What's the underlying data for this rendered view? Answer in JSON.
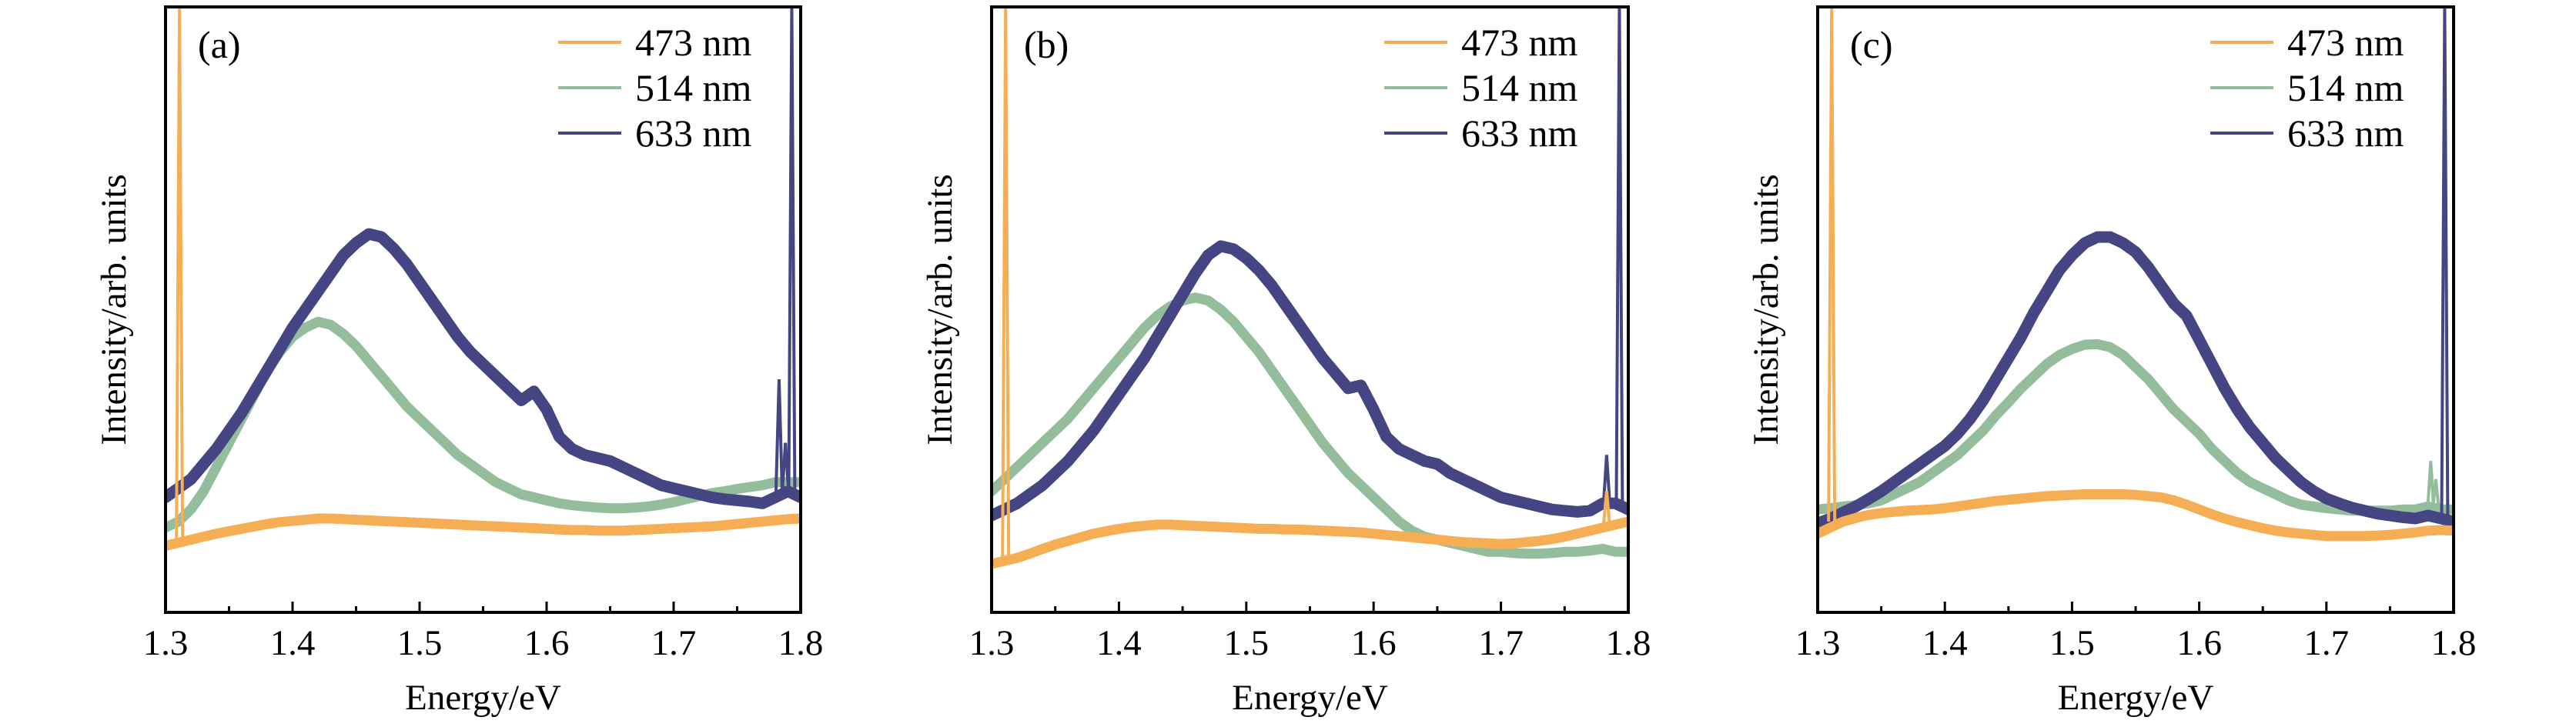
{
  "figure": {
    "colors": {
      "473 nm": "#F6AE55",
      "514 nm": "#94BD9C",
      "633 nm": "#444582",
      "axis": "#000000"
    }
  },
  "chart_data": [
    {
      "type": "line",
      "panel_label": "(a)",
      "title": "",
      "xlabel": "Energy/eV",
      "ylabel": "Intensity/arb. units",
      "xlim": [
        1.3,
        1.8
      ],
      "ylim": [
        0,
        1
      ],
      "y_units": "normalized arbitrary units (fraction of axis height)",
      "xticks": [
        "1.3",
        "1.4",
        "1.5",
        "1.6",
        "1.7",
        "1.8"
      ],
      "xtick_values": [
        1.3,
        1.4,
        1.5,
        1.6,
        1.7,
        1.8
      ],
      "minor_xtick_values": [
        1.35,
        1.45,
        1.55,
        1.65,
        1.75
      ],
      "yticks": [],
      "grid": false,
      "legend_position": "top-right",
      "legend": [
        "473 nm",
        "514 nm",
        "633 nm"
      ],
      "x": [
        1.3,
        1.31,
        1.32,
        1.33,
        1.34,
        1.35,
        1.36,
        1.37,
        1.38,
        1.39,
        1.4,
        1.41,
        1.42,
        1.43,
        1.44,
        1.45,
        1.46,
        1.47,
        1.48,
        1.49,
        1.5,
        1.51,
        1.52,
        1.53,
        1.54,
        1.55,
        1.56,
        1.57,
        1.58,
        1.59,
        1.6,
        1.61,
        1.62,
        1.63,
        1.64,
        1.65,
        1.66,
        1.67,
        1.68,
        1.69,
        1.7,
        1.71,
        1.72,
        1.73,
        1.74,
        1.75,
        1.76,
        1.77,
        1.78,
        1.79,
        1.8
      ],
      "series": [
        {
          "name": "473 nm",
          "values": [
            0.11,
            0.115,
            0.12,
            0.125,
            0.13,
            0.134,
            0.138,
            0.142,
            0.146,
            0.149,
            0.151,
            0.153,
            0.155,
            0.155,
            0.154,
            0.153,
            0.152,
            0.151,
            0.15,
            0.149,
            0.148,
            0.147,
            0.146,
            0.145,
            0.144,
            0.143,
            0.142,
            0.141,
            0.14,
            0.139,
            0.138,
            0.137,
            0.136,
            0.136,
            0.135,
            0.135,
            0.135,
            0.136,
            0.137,
            0.138,
            0.139,
            0.14,
            0.141,
            0.142,
            0.144,
            0.146,
            0.148,
            0.15,
            0.152,
            0.154,
            0.155
          ],
          "spikes": [
            {
              "x": 1.311,
              "y": 1.0
            }
          ]
        },
        {
          "name": "514 nm",
          "values": [
            0.14,
            0.15,
            0.17,
            0.2,
            0.24,
            0.28,
            0.32,
            0.36,
            0.4,
            0.43,
            0.455,
            0.47,
            0.48,
            0.475,
            0.46,
            0.44,
            0.415,
            0.39,
            0.365,
            0.34,
            0.32,
            0.3,
            0.28,
            0.26,
            0.245,
            0.23,
            0.215,
            0.205,
            0.195,
            0.19,
            0.185,
            0.18,
            0.177,
            0.175,
            0.173,
            0.172,
            0.172,
            0.173,
            0.175,
            0.178,
            0.182,
            0.187,
            0.192,
            0.197,
            0.2,
            0.204,
            0.207,
            0.21,
            0.215,
            0.215,
            0.215
          ],
          "spikes": []
        },
        {
          "name": "633 nm",
          "values": [
            0.19,
            0.205,
            0.22,
            0.245,
            0.27,
            0.3,
            0.33,
            0.365,
            0.4,
            0.435,
            0.47,
            0.5,
            0.53,
            0.56,
            0.59,
            0.61,
            0.625,
            0.62,
            0.6,
            0.575,
            0.545,
            0.515,
            0.485,
            0.455,
            0.43,
            0.41,
            0.39,
            0.37,
            0.35,
            0.365,
            0.335,
            0.29,
            0.27,
            0.26,
            0.255,
            0.25,
            0.24,
            0.23,
            0.22,
            0.21,
            0.205,
            0.2,
            0.195,
            0.19,
            0.187,
            0.185,
            0.183,
            0.18,
            0.19,
            0.2,
            0.19
          ],
          "spikes": [
            {
              "x": 1.783,
              "y": 0.385
            },
            {
              "x": 1.788,
              "y": 0.28
            },
            {
              "x": 1.793,
              "y": 1.0
            }
          ]
        }
      ]
    },
    {
      "type": "line",
      "panel_label": "(b)",
      "title": "",
      "xlabel": "Energy/eV",
      "ylabel": "Intensity/arb. units",
      "xlim": [
        1.3,
        1.8
      ],
      "ylim": [
        0,
        1
      ],
      "y_units": "normalized arbitrary units (fraction of axis height)",
      "xticks": [
        "1.3",
        "1.4",
        "1.5",
        "1.6",
        "1.7",
        "1.8"
      ],
      "xtick_values": [
        1.3,
        1.4,
        1.5,
        1.6,
        1.7,
        1.8
      ],
      "minor_xtick_values": [
        1.35,
        1.45,
        1.55,
        1.65,
        1.75
      ],
      "yticks": [],
      "grid": false,
      "legend_position": "top-right",
      "legend": [
        "473 nm",
        "514 nm",
        "633 nm"
      ],
      "x": [
        1.3,
        1.31,
        1.32,
        1.33,
        1.34,
        1.35,
        1.36,
        1.37,
        1.38,
        1.39,
        1.4,
        1.41,
        1.42,
        1.43,
        1.44,
        1.45,
        1.46,
        1.47,
        1.48,
        1.49,
        1.5,
        1.51,
        1.52,
        1.53,
        1.54,
        1.55,
        1.56,
        1.57,
        1.58,
        1.59,
        1.6,
        1.61,
        1.62,
        1.63,
        1.64,
        1.65,
        1.66,
        1.67,
        1.68,
        1.69,
        1.7,
        1.71,
        1.72,
        1.73,
        1.74,
        1.75,
        1.76,
        1.77,
        1.78,
        1.79,
        1.8
      ],
      "series": [
        {
          "name": "473 nm",
          "values": [
            0.08,
            0.085,
            0.09,
            0.097,
            0.105,
            0.112,
            0.118,
            0.124,
            0.13,
            0.134,
            0.138,
            0.141,
            0.143,
            0.145,
            0.145,
            0.144,
            0.143,
            0.142,
            0.141,
            0.14,
            0.139,
            0.138,
            0.138,
            0.137,
            0.137,
            0.136,
            0.135,
            0.134,
            0.133,
            0.132,
            0.13,
            0.128,
            0.126,
            0.124,
            0.122,
            0.12,
            0.118,
            0.116,
            0.115,
            0.114,
            0.113,
            0.114,
            0.116,
            0.118,
            0.121,
            0.125,
            0.13,
            0.135,
            0.14,
            0.145,
            0.15
          ],
          "spikes": [
            {
              "x": 1.311,
              "y": 1.0
            },
            {
              "x": 1.783,
              "y": 0.2
            }
          ]
        },
        {
          "name": "514 nm",
          "values": [
            0.2,
            0.22,
            0.24,
            0.26,
            0.28,
            0.3,
            0.32,
            0.345,
            0.37,
            0.395,
            0.42,
            0.445,
            0.47,
            0.49,
            0.505,
            0.515,
            0.52,
            0.515,
            0.5,
            0.48,
            0.455,
            0.43,
            0.4,
            0.37,
            0.34,
            0.31,
            0.28,
            0.255,
            0.23,
            0.21,
            0.19,
            0.17,
            0.15,
            0.135,
            0.125,
            0.12,
            0.115,
            0.11,
            0.105,
            0.1,
            0.1,
            0.098,
            0.097,
            0.097,
            0.098,
            0.1,
            0.1,
            0.102,
            0.105,
            0.1,
            0.1
          ],
          "spikes": []
        },
        {
          "name": "633 nm",
          "values": [
            0.16,
            0.17,
            0.18,
            0.195,
            0.21,
            0.23,
            0.25,
            0.275,
            0.3,
            0.33,
            0.36,
            0.39,
            0.42,
            0.455,
            0.49,
            0.525,
            0.56,
            0.59,
            0.605,
            0.6,
            0.585,
            0.565,
            0.54,
            0.51,
            0.48,
            0.45,
            0.42,
            0.395,
            0.37,
            0.375,
            0.335,
            0.29,
            0.27,
            0.26,
            0.25,
            0.245,
            0.23,
            0.22,
            0.21,
            0.2,
            0.19,
            0.185,
            0.18,
            0.175,
            0.17,
            0.168,
            0.166,
            0.168,
            0.18,
            0.18,
            0.17
          ],
          "spikes": [
            {
              "x": 1.783,
              "y": 0.26
            },
            {
              "x": 1.793,
              "y": 1.0
            }
          ]
        }
      ]
    },
    {
      "type": "line",
      "panel_label": "(c)",
      "title": "",
      "xlabel": "Energy/eV",
      "ylabel": "Intensity/arb. units",
      "xlim": [
        1.3,
        1.8
      ],
      "ylim": [
        0,
        1
      ],
      "y_units": "normalized arbitrary units (fraction of axis height)",
      "xticks": [
        "1.3",
        "1.4",
        "1.5",
        "1.6",
        "1.7",
        "1.8"
      ],
      "xtick_values": [
        1.3,
        1.4,
        1.5,
        1.6,
        1.7,
        1.8
      ],
      "minor_xtick_values": [
        1.35,
        1.45,
        1.55,
        1.65,
        1.75
      ],
      "yticks": [],
      "grid": false,
      "legend_position": "top-right",
      "legend": [
        "473 nm",
        "514 nm",
        "633 nm"
      ],
      "x": [
        1.3,
        1.31,
        1.32,
        1.33,
        1.34,
        1.35,
        1.36,
        1.37,
        1.38,
        1.39,
        1.4,
        1.41,
        1.42,
        1.43,
        1.44,
        1.45,
        1.46,
        1.47,
        1.48,
        1.49,
        1.5,
        1.51,
        1.52,
        1.53,
        1.54,
        1.55,
        1.56,
        1.57,
        1.58,
        1.59,
        1.6,
        1.61,
        1.62,
        1.63,
        1.64,
        1.65,
        1.66,
        1.67,
        1.68,
        1.69,
        1.7,
        1.71,
        1.72,
        1.73,
        1.74,
        1.75,
        1.76,
        1.77,
        1.78,
        1.79,
        1.8
      ],
      "series": [
        {
          "name": "473 nm",
          "values": [
            0.13,
            0.14,
            0.15,
            0.156,
            0.161,
            0.164,
            0.166,
            0.168,
            0.169,
            0.17,
            0.172,
            0.175,
            0.178,
            0.181,
            0.184,
            0.186,
            0.188,
            0.19,
            0.192,
            0.193,
            0.194,
            0.195,
            0.195,
            0.195,
            0.195,
            0.194,
            0.192,
            0.19,
            0.185,
            0.178,
            0.17,
            0.162,
            0.155,
            0.149,
            0.144,
            0.139,
            0.135,
            0.132,
            0.13,
            0.128,
            0.126,
            0.126,
            0.126,
            0.126,
            0.127,
            0.128,
            0.13,
            0.132,
            0.135,
            0.136,
            0.135
          ],
          "spikes": [
            {
              "x": 1.311,
              "y": 1.0
            }
          ]
        },
        {
          "name": "514 nm",
          "values": [
            0.17,
            0.172,
            0.175,
            0.177,
            0.18,
            0.185,
            0.195,
            0.205,
            0.215,
            0.23,
            0.245,
            0.26,
            0.28,
            0.3,
            0.325,
            0.347,
            0.37,
            0.39,
            0.41,
            0.425,
            0.435,
            0.442,
            0.443,
            0.438,
            0.425,
            0.405,
            0.385,
            0.36,
            0.335,
            0.315,
            0.295,
            0.27,
            0.25,
            0.23,
            0.215,
            0.205,
            0.195,
            0.185,
            0.178,
            0.175,
            0.172,
            0.17,
            0.168,
            0.168,
            0.168,
            0.168,
            0.17,
            0.17,
            0.175,
            0.17,
            0.17
          ],
          "spikes": [
            {
              "x": 1.782,
              "y": 0.25
            },
            {
              "x": 1.786,
              "y": 0.22
            }
          ]
        },
        {
          "name": "633 nm",
          "values": [
            0.147,
            0.155,
            0.165,
            0.175,
            0.187,
            0.2,
            0.215,
            0.23,
            0.245,
            0.26,
            0.275,
            0.295,
            0.32,
            0.35,
            0.385,
            0.42,
            0.455,
            0.495,
            0.53,
            0.565,
            0.59,
            0.61,
            0.62,
            0.62,
            0.61,
            0.595,
            0.57,
            0.54,
            0.51,
            0.49,
            0.45,
            0.41,
            0.37,
            0.335,
            0.305,
            0.28,
            0.255,
            0.235,
            0.215,
            0.2,
            0.188,
            0.18,
            0.173,
            0.168,
            0.163,
            0.16,
            0.157,
            0.155,
            0.16,
            0.155,
            0.15
          ],
          "spikes": [
            {
              "x": 1.793,
              "y": 1.0
            }
          ]
        }
      ]
    }
  ]
}
